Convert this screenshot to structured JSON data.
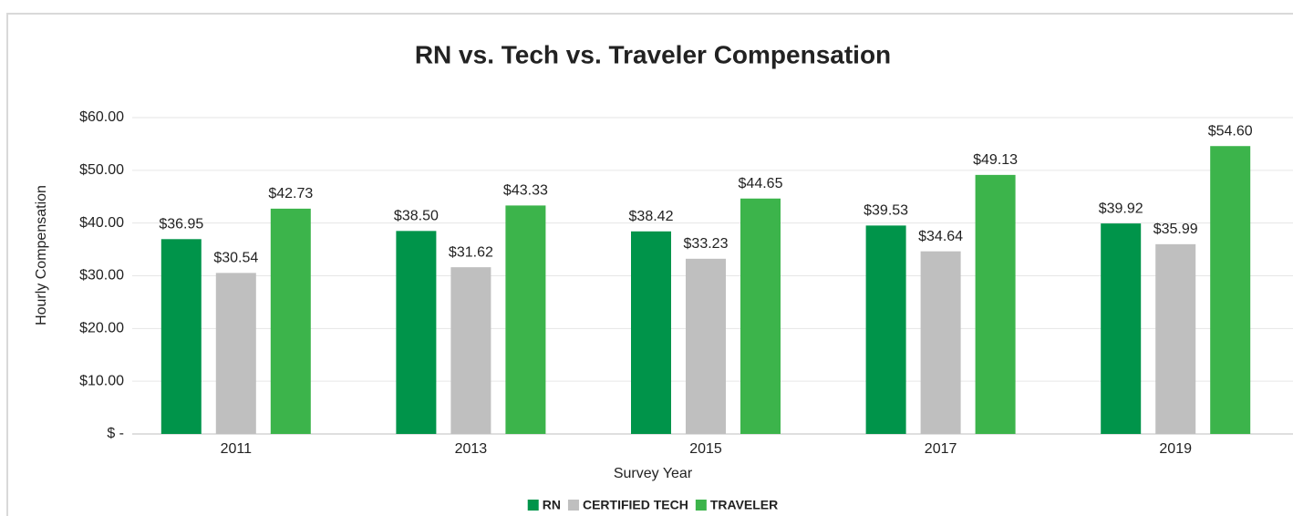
{
  "chart_data": {
    "type": "bar",
    "title": "RN vs. Tech vs. Traveler Compensation",
    "x_label": "Survey Year",
    "y_label": "Hourly Compensation",
    "categories": [
      "2011",
      "2013",
      "2015",
      "2017",
      "2019"
    ],
    "series": [
      {
        "name": "RN",
        "color": "#00944a",
        "values": [
          36.95,
          38.5,
          38.42,
          39.53,
          39.92
        ],
        "value_labels": [
          "$36.95",
          "$38.50",
          "$38.42",
          "$39.53",
          "$39.92"
        ]
      },
      {
        "name": "CERTIFIED TECH",
        "color": "#bfbfbf",
        "values": [
          30.54,
          31.62,
          33.23,
          34.64,
          35.99
        ],
        "value_labels": [
          "$30.54",
          "$31.62",
          "$33.23",
          "$34.64",
          "$35.99"
        ]
      },
      {
        "name": "TRAVELER",
        "color": "#3cb44b",
        "values": [
          42.73,
          43.33,
          44.65,
          49.13,
          54.6
        ],
        "value_labels": [
          "$42.73",
          "$43.33",
          "$44.65",
          "$49.13",
          "$54.60"
        ]
      }
    ],
    "ylim": [
      0,
      60
    ],
    "yticks": [
      {
        "value": 0,
        "label": "$ -"
      },
      {
        "value": 10,
        "label": "$10.00"
      },
      {
        "value": 20,
        "label": "$20.00"
      },
      {
        "value": 30,
        "label": "$30.00"
      },
      {
        "value": 40,
        "label": "$40.00"
      },
      {
        "value": 50,
        "label": "$50.00"
      },
      {
        "value": 60,
        "label": "$60.00"
      }
    ],
    "grid": true,
    "legend": "bottom"
  }
}
